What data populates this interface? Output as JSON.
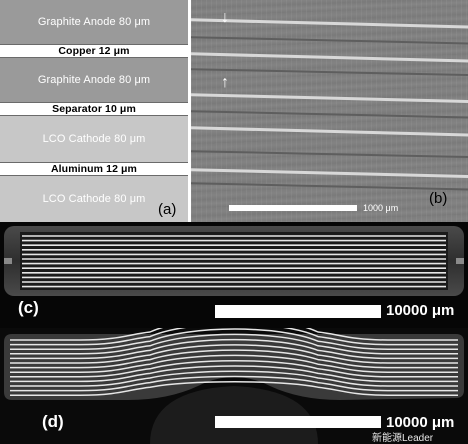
{
  "panel_a": {
    "letter": "(a)",
    "layers": [
      {
        "label": "Graphite Anode  80 μm",
        "kind": "anode"
      },
      {
        "label": "Copper 12 μm",
        "kind": "thin"
      },
      {
        "label": "Graphite Anode  80 μm",
        "kind": "anode"
      },
      {
        "label": "Separator 10 μm",
        "kind": "thin"
      },
      {
        "label": "LCO Cathode  80 μm",
        "kind": "cathode"
      },
      {
        "label": "Aluminum 12 μm",
        "kind": "thin"
      },
      {
        "label": "LCO Cathode  80 μm",
        "kind": "cathode"
      }
    ]
  },
  "panel_b": {
    "letter": "(b)",
    "scale_label": "1000 μm",
    "arrow_down": "↓",
    "arrow_up": "↑"
  },
  "panel_c": {
    "letter": "(c)",
    "scale_label": "10000 μm"
  },
  "panel_d": {
    "letter": "(d)",
    "scale_label": "10000 μm",
    "watermark": "新能源Leader"
  },
  "colors": {
    "anode": "#9a9a9a",
    "cathode": "#c7c7c7",
    "ct_background": "#060606",
    "electrode_line": "#e6e6e6"
  }
}
